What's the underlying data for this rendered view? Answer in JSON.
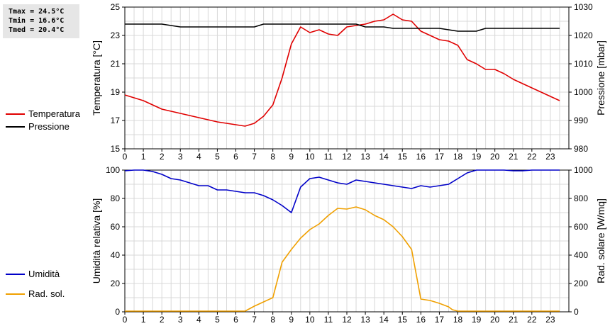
{
  "stats": {
    "tmax": "Tmax = 24.5°C",
    "tmin": "Tmin = 16.6°C",
    "tmed": "Tmed = 20.4°C"
  },
  "legend_top": [
    {
      "label": "Temperatura",
      "color": "#e00000"
    },
    {
      "label": "Pressione",
      "color": "#000000"
    }
  ],
  "legend_bottom": [
    {
      "label": "Umidità",
      "color": "#0000c8"
    },
    {
      "label": "Rad. sol.",
      "color": "#f0a000"
    }
  ],
  "chart_data": [
    {
      "type": "line",
      "xlabel": "",
      "ylabel": "Temperatura [°C]",
      "y2label": "Pressione [mbar]",
      "xlim": [
        0,
        24
      ],
      "ylim": [
        15,
        25
      ],
      "y2lim": [
        980,
        1030
      ],
      "x_ticks": [
        "0",
        "1",
        "2",
        "3",
        "4",
        "5",
        "6",
        "7",
        "8",
        "9",
        "10",
        "11",
        "12",
        "13",
        "14",
        "15",
        "16",
        "17",
        "18",
        "19",
        "20",
        "21",
        "22",
        "23"
      ],
      "y_ticks": [
        "15",
        "17",
        "19",
        "21",
        "23",
        "25"
      ],
      "y2_ticks": [
        "980",
        "990",
        "1000",
        "1010",
        "1020",
        "1030"
      ],
      "grid": true,
      "series": [
        {
          "name": "Temperatura",
          "color": "#e00000",
          "axis": "left",
          "x": [
            0,
            1,
            2,
            3,
            4,
            5,
            6,
            6.5,
            7,
            7.5,
            8,
            8.5,
            9,
            9.5,
            10,
            10.5,
            11,
            11.5,
            12,
            12.5,
            13,
            13.5,
            14,
            14.5,
            15,
            15.5,
            16,
            16.5,
            17,
            17.5,
            18,
            18.5,
            19,
            19.5,
            20,
            20.5,
            21,
            21.5,
            22,
            22.5,
            23,
            23.5
          ],
          "values": [
            18.8,
            18.4,
            17.8,
            17.5,
            17.2,
            16.9,
            16.7,
            16.6,
            16.8,
            17.3,
            18.1,
            20.0,
            22.4,
            23.6,
            23.2,
            23.4,
            23.1,
            23.0,
            23.6,
            23.7,
            23.8,
            24.0,
            24.1,
            24.5,
            24.1,
            24.0,
            23.3,
            23.0,
            22.7,
            22.6,
            22.3,
            21.3,
            21.0,
            20.6,
            20.6,
            20.3,
            19.9,
            19.6,
            19.3,
            19.0,
            18.7,
            18.4
          ]
        },
        {
          "name": "Pressione",
          "color": "#000000",
          "axis": "right",
          "x": [
            0,
            2,
            2.5,
            3,
            7,
            7.5,
            12,
            12.5,
            13,
            14,
            14.5,
            15,
            17,
            17.5,
            18,
            19,
            19.5,
            20,
            23.5
          ],
          "values": [
            1024,
            1024,
            1023.5,
            1023,
            1023,
            1024,
            1024,
            1024,
            1023,
            1023,
            1022.5,
            1022.5,
            1022.5,
            1022,
            1021.5,
            1021.5,
            1022.5,
            1022.5,
            1022.5
          ]
        }
      ]
    },
    {
      "type": "line",
      "xlabel": "",
      "ylabel": "Umidità relativa [%]",
      "y2label": "Rad. solare [W/mq]",
      "xlim": [
        0,
        24
      ],
      "ylim": [
        0,
        100
      ],
      "y2lim": [
        0,
        1000
      ],
      "x_ticks": [
        "0",
        "1",
        "2",
        "3",
        "4",
        "5",
        "6",
        "7",
        "8",
        "9",
        "10",
        "11",
        "12",
        "13",
        "14",
        "15",
        "16",
        "17",
        "18",
        "19",
        "20",
        "21",
        "22",
        "23"
      ],
      "y_ticks": [
        "0",
        "20",
        "40",
        "60",
        "80",
        "100"
      ],
      "y2_ticks": [
        "0",
        "200",
        "400",
        "600",
        "800",
        "1000"
      ],
      "grid": true,
      "series": [
        {
          "name": "Umidità",
          "color": "#0000c8",
          "axis": "left",
          "x": [
            0,
            0.5,
            1,
            1.5,
            2,
            2.5,
            3,
            3.5,
            4,
            4.5,
            5,
            5.5,
            6,
            6.5,
            7,
            7.5,
            8,
            8.5,
            9,
            9.5,
            10,
            10.5,
            11,
            11.5,
            12,
            12.5,
            13,
            13.5,
            14,
            14.5,
            15,
            15.5,
            16,
            16.5,
            17,
            17.5,
            18,
            18.5,
            19,
            19.5,
            20,
            20.5,
            21,
            21.5,
            22,
            22.5,
            23,
            23.5
          ],
          "values": [
            99.5,
            100,
            100,
            99,
            97,
            94,
            93,
            91,
            89,
            89,
            86,
            86,
            85,
            84,
            84,
            82,
            79,
            75,
            70,
            88,
            94,
            95,
            93,
            91,
            90,
            93,
            92,
            91,
            90,
            89,
            88,
            87,
            89,
            88,
            89,
            90,
            94,
            98,
            100,
            100,
            100,
            100,
            99.5,
            99.5,
            100,
            100,
            100,
            100
          ]
        },
        {
          "name": "Rad. sol.",
          "color": "#f0a000",
          "axis": "right",
          "x": [
            0,
            6,
            6.5,
            7,
            7.5,
            8,
            8.5,
            9,
            9.5,
            10,
            10.5,
            11,
            11.5,
            12,
            12.5,
            13,
            13.5,
            14,
            14.5,
            15,
            15.5,
            16,
            16.5,
            17,
            17.5,
            17.7,
            18,
            23.5
          ],
          "values": [
            5,
            5,
            5,
            40,
            70,
            100,
            350,
            440,
            520,
            580,
            620,
            680,
            730,
            725,
            740,
            720,
            680,
            650,
            600,
            530,
            440,
            90,
            80,
            60,
            35,
            15,
            5,
            5
          ]
        }
      ]
    }
  ]
}
